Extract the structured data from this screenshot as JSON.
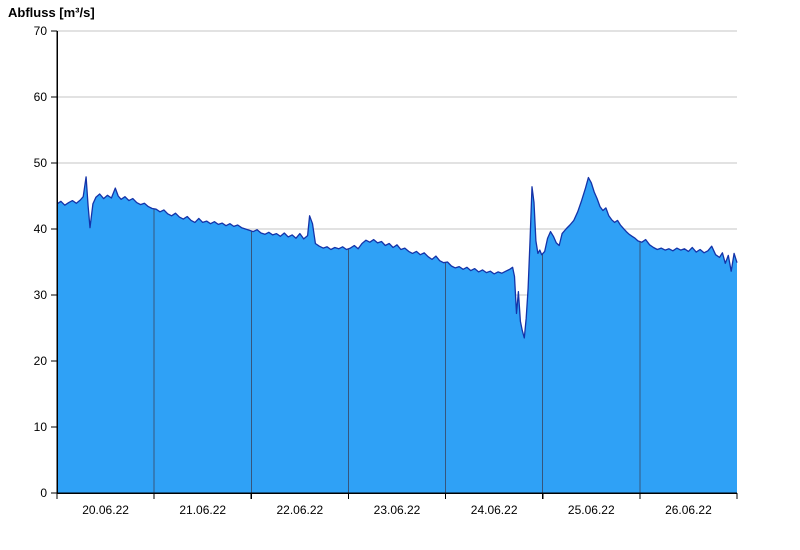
{
  "title": "Abfluss [m³/s]",
  "chart_data": {
    "type": "area",
    "title": "Abfluss [m³/s]",
    "xlabel": "",
    "ylabel": "Abfluss [m³/s]",
    "ylim": [
      0,
      70
    ],
    "x_range": [
      0,
      7
    ],
    "y_ticks": [
      0,
      10,
      20,
      30,
      40,
      50,
      60,
      70
    ],
    "x_tick_labels": [
      "20.06.22",
      "21.06.22",
      "22.06.22",
      "23.06.22",
      "24.06.22",
      "25.06.22",
      "26.06.22"
    ],
    "grid": "horizontal light gray lines at every 10; dark vertical lines at day boundaries inside filled area",
    "legend_position": "none",
    "colors": {
      "fill": "#2fa1f6",
      "line": "#1433a8",
      "day_line": "#35567e",
      "grid": "#c6c6c6",
      "axis": "#000000",
      "background": "#ffffff"
    },
    "series": [
      {
        "name": "Abfluss",
        "unit": "m³/s",
        "x": [
          0.0,
          0.04,
          0.08,
          0.12,
          0.16,
          0.2,
          0.24,
          0.27,
          0.3,
          0.32,
          0.34,
          0.37,
          0.4,
          0.44,
          0.48,
          0.52,
          0.56,
          0.6,
          0.63,
          0.66,
          0.7,
          0.74,
          0.78,
          0.82,
          0.86,
          0.9,
          0.94,
          0.98,
          1.02,
          1.06,
          1.1,
          1.14,
          1.18,
          1.22,
          1.26,
          1.3,
          1.34,
          1.38,
          1.42,
          1.46,
          1.5,
          1.54,
          1.58,
          1.62,
          1.66,
          1.7,
          1.74,
          1.78,
          1.82,
          1.86,
          1.9,
          1.94,
          1.98,
          2.02,
          2.06,
          2.1,
          2.14,
          2.18,
          2.22,
          2.26,
          2.3,
          2.34,
          2.38,
          2.42,
          2.46,
          2.5,
          2.54,
          2.58,
          2.6,
          2.63,
          2.66,
          2.7,
          2.74,
          2.78,
          2.82,
          2.86,
          2.9,
          2.94,
          2.98,
          3.02,
          3.06,
          3.1,
          3.14,
          3.18,
          3.22,
          3.26,
          3.3,
          3.34,
          3.38,
          3.42,
          3.46,
          3.5,
          3.54,
          3.58,
          3.62,
          3.66,
          3.7,
          3.74,
          3.78,
          3.82,
          3.86,
          3.9,
          3.94,
          3.98,
          4.02,
          4.06,
          4.1,
          4.14,
          4.18,
          4.22,
          4.26,
          4.3,
          4.34,
          4.38,
          4.42,
          4.46,
          4.5,
          4.54,
          4.58,
          4.62,
          4.66,
          4.69,
          4.71,
          4.73,
          4.75,
          4.77,
          4.79,
          4.81,
          4.83,
          4.85,
          4.87,
          4.89,
          4.91,
          4.93,
          4.95,
          4.97,
          4.99,
          5.02,
          5.05,
          5.08,
          5.11,
          5.14,
          5.17,
          5.2,
          5.24,
          5.28,
          5.32,
          5.36,
          5.4,
          5.44,
          5.47,
          5.5,
          5.53,
          5.56,
          5.59,
          5.62,
          5.65,
          5.68,
          5.71,
          5.74,
          5.77,
          5.8,
          5.83,
          5.86,
          5.89,
          5.92,
          5.95,
          5.98,
          6.02,
          6.06,
          6.1,
          6.14,
          6.18,
          6.22,
          6.26,
          6.3,
          6.34,
          6.38,
          6.42,
          6.46,
          6.5,
          6.54,
          6.58,
          6.62,
          6.66,
          6.7,
          6.74,
          6.78,
          6.82,
          6.85,
          6.88,
          6.91,
          6.94,
          6.97,
          7.0
        ],
        "y": [
          43.8,
          44.2,
          43.6,
          44.0,
          44.3,
          43.9,
          44.4,
          44.9,
          47.9,
          43.5,
          40.2,
          43.8,
          44.8,
          45.3,
          44.6,
          45.1,
          44.7,
          46.2,
          45.0,
          44.5,
          44.9,
          44.3,
          44.6,
          44.0,
          43.7,
          43.9,
          43.4,
          43.1,
          43.0,
          42.6,
          42.9,
          42.3,
          42.0,
          42.4,
          41.8,
          41.5,
          41.9,
          41.3,
          41.0,
          41.6,
          41.0,
          41.2,
          40.8,
          41.1,
          40.7,
          40.9,
          40.5,
          40.8,
          40.4,
          40.6,
          40.2,
          40.0,
          39.8,
          39.6,
          39.9,
          39.4,
          39.2,
          39.5,
          39.1,
          39.3,
          38.9,
          39.4,
          38.8,
          39.1,
          38.6,
          39.3,
          38.5,
          39.0,
          42.0,
          40.8,
          37.8,
          37.4,
          37.1,
          37.3,
          36.9,
          37.2,
          37.0,
          37.3,
          36.9,
          37.1,
          37.5,
          37.0,
          37.8,
          38.3,
          38.0,
          38.4,
          37.9,
          38.1,
          37.5,
          37.8,
          37.2,
          37.6,
          36.9,
          37.1,
          36.6,
          36.3,
          36.6,
          36.1,
          36.4,
          35.8,
          35.4,
          35.9,
          35.2,
          34.9,
          35.0,
          34.4,
          34.1,
          34.3,
          33.9,
          34.2,
          33.7,
          34.0,
          33.5,
          33.8,
          33.4,
          33.6,
          33.2,
          33.5,
          33.3,
          33.6,
          33.9,
          34.2,
          32.8,
          27.2,
          30.5,
          26.0,
          24.6,
          23.5,
          26.5,
          31.0,
          38.5,
          46.4,
          44.0,
          38.2,
          36.3,
          36.8,
          36.1,
          36.6,
          38.6,
          39.6,
          38.9,
          37.9,
          37.5,
          39.3,
          40.0,
          40.6,
          41.3,
          42.6,
          44.3,
          46.2,
          47.8,
          47.0,
          45.6,
          44.6,
          43.4,
          42.8,
          43.2,
          42.0,
          41.4,
          41.0,
          41.3,
          40.6,
          40.1,
          39.6,
          39.2,
          38.9,
          38.6,
          38.2,
          38.0,
          38.4,
          37.6,
          37.2,
          36.9,
          37.1,
          36.8,
          37.0,
          36.7,
          37.1,
          36.8,
          37.0,
          36.6,
          37.2,
          36.5,
          36.9,
          36.4,
          36.7,
          37.4,
          36.1,
          35.7,
          36.4,
          34.8,
          36.0,
          33.6,
          36.3,
          34.9
        ]
      }
    ]
  }
}
